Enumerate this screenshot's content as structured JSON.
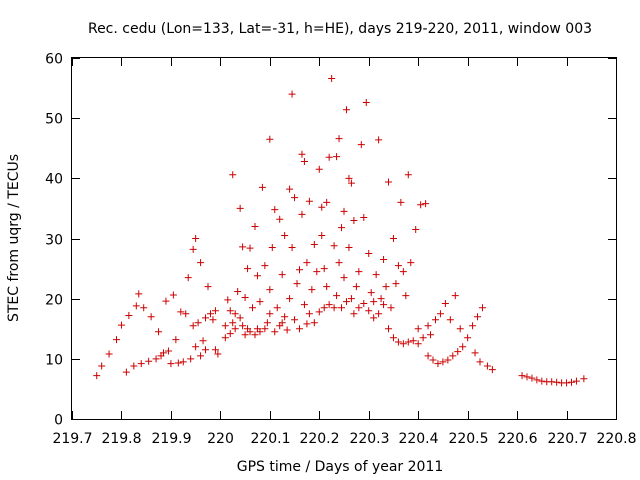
{
  "chart_data": {
    "type": "scatter",
    "title": "Rec. cedu (Lon=133, Lat=-31, h=HE), days 219-220, 2011, window 003",
    "xlabel": "GPS time / Days of year 2011",
    "ylabel": "STEC from uqrg / TECUs",
    "xlim": [
      219.7,
      220.8
    ],
    "ylim": [
      0,
      60
    ],
    "x_ticks": [
      219.7,
      219.8,
      219.9,
      220.0,
      220.1,
      220.2,
      220.3,
      220.4,
      220.5,
      220.6,
      220.7,
      220.8
    ],
    "x_tick_labels": [
      "219.7",
      "219.8",
      "219.9",
      "220",
      "220.1",
      "220.2",
      "220.3",
      "220.4",
      "220.5",
      "220.6",
      "220.7",
      "220.8"
    ],
    "y_ticks": [
      0,
      10,
      20,
      30,
      40,
      50,
      60
    ],
    "y_tick_labels": [
      "0",
      "10",
      "20",
      "30",
      "40",
      "50",
      "60"
    ],
    "grid": false,
    "marker": "plus",
    "color": "#cc0000",
    "series": [
      {
        "points": [
          [
            219.75,
            7.2
          ],
          [
            219.76,
            8.8
          ],
          [
            219.775,
            10.8
          ],
          [
            219.79,
            13.2
          ],
          [
            219.8,
            15.6
          ],
          [
            219.81,
            7.8
          ],
          [
            219.815,
            17.2
          ],
          [
            219.825,
            8.8
          ],
          [
            219.83,
            18.8
          ],
          [
            219.835,
            20.8
          ],
          [
            219.84,
            9.2
          ],
          [
            219.845,
            18.5
          ],
          [
            219.855,
            9.6
          ],
          [
            219.86,
            17.0
          ],
          [
            219.87,
            10.0
          ],
          [
            219.875,
            14.5
          ],
          [
            219.88,
            10.5
          ],
          [
            219.885,
            11.0
          ],
          [
            219.89,
            19.6
          ],
          [
            219.895,
            11.3
          ],
          [
            219.9,
            9.2
          ],
          [
            219.905,
            20.6
          ],
          [
            219.91,
            13.2
          ],
          [
            219.915,
            9.3
          ],
          [
            219.92,
            17.8
          ],
          [
            219.925,
            9.5
          ],
          [
            219.93,
            17.5
          ],
          [
            219.935,
            23.5
          ],
          [
            219.94,
            10.0
          ],
          [
            219.945,
            15.5
          ],
          [
            219.945,
            28.2
          ],
          [
            219.95,
            12.0
          ],
          [
            219.95,
            30.0
          ],
          [
            219.955,
            16.0
          ],
          [
            219.96,
            10.5
          ],
          [
            219.96,
            26.0
          ],
          [
            219.965,
            13.0
          ],
          [
            219.97,
            11.5
          ],
          [
            219.97,
            16.8
          ],
          [
            219.975,
            22.0
          ],
          [
            219.98,
            17.5
          ],
          [
            219.985,
            16.5
          ],
          [
            219.99,
            11.5
          ],
          [
            219.99,
            18.0
          ],
          [
            219.995,
            10.8
          ],
          [
            220.01,
            13.5
          ],
          [
            220.01,
            15.5
          ],
          [
            220.015,
            19.8
          ],
          [
            220.02,
            14.2
          ],
          [
            220.02,
            18.0
          ],
          [
            220.025,
            16.0
          ],
          [
            220.025,
            40.6
          ],
          [
            220.03,
            15.0
          ],
          [
            220.03,
            17.5
          ],
          [
            220.035,
            21.2
          ],
          [
            220.04,
            16.8
          ],
          [
            220.04,
            35.0
          ],
          [
            220.045,
            15.5
          ],
          [
            220.045,
            28.6
          ],
          [
            220.05,
            14.0
          ],
          [
            220.05,
            20.2
          ],
          [
            220.055,
            15.0
          ],
          [
            220.055,
            25.0
          ],
          [
            220.06,
            14.5
          ],
          [
            220.06,
            28.4
          ],
          [
            220.065,
            18.5
          ],
          [
            220.07,
            14.0
          ],
          [
            220.07,
            32.0
          ],
          [
            220.075,
            15.0
          ],
          [
            220.075,
            23.8
          ],
          [
            220.08,
            14.5
          ],
          [
            220.08,
            19.5
          ],
          [
            220.085,
            38.5
          ],
          [
            220.09,
            15.0
          ],
          [
            220.09,
            25.5
          ],
          [
            220.095,
            16.0
          ],
          [
            220.1,
            17.5
          ],
          [
            220.1,
            21.5
          ],
          [
            220.1,
            46.5
          ],
          [
            220.105,
            28.5
          ],
          [
            220.11,
            14.5
          ],
          [
            220.11,
            34.8
          ],
          [
            220.115,
            18.5
          ],
          [
            220.12,
            15.5
          ],
          [
            220.12,
            33.2
          ],
          [
            220.125,
            16.0
          ],
          [
            220.125,
            24.0
          ],
          [
            220.13,
            17.0
          ],
          [
            220.13,
            30.5
          ],
          [
            220.135,
            14.8
          ],
          [
            220.14,
            20.0
          ],
          [
            220.14,
            38.2
          ],
          [
            220.145,
            28.5
          ],
          [
            220.145,
            54.0
          ],
          [
            220.15,
            16.5
          ],
          [
            220.15,
            36.8
          ],
          [
            220.155,
            22.5
          ],
          [
            220.16,
            15.0
          ],
          [
            220.16,
            24.8
          ],
          [
            220.165,
            34.0
          ],
          [
            220.165,
            44.0
          ],
          [
            220.17,
            19.0
          ],
          [
            220.17,
            42.8
          ],
          [
            220.175,
            15.8
          ],
          [
            220.175,
            26.0
          ],
          [
            220.18,
            17.5
          ],
          [
            220.18,
            36.2
          ],
          [
            220.185,
            21.5
          ],
          [
            220.19,
            16.0
          ],
          [
            220.19,
            29.0
          ],
          [
            220.195,
            24.5
          ],
          [
            220.2,
            17.8
          ],
          [
            220.2,
            41.5
          ],
          [
            220.205,
            30.5
          ],
          [
            220.205,
            35.2
          ],
          [
            220.21,
            18.5
          ],
          [
            220.21,
            25.0
          ],
          [
            220.215,
            22.0
          ],
          [
            220.215,
            36.0
          ],
          [
            220.22,
            19.0
          ],
          [
            220.22,
            43.5
          ],
          [
            220.225,
            56.6
          ],
          [
            220.23,
            18.5
          ],
          [
            220.23,
            28.8
          ],
          [
            220.235,
            20.5
          ],
          [
            220.235,
            43.6
          ],
          [
            220.24,
            26.0
          ],
          [
            220.24,
            46.6
          ],
          [
            220.245,
            18.5
          ],
          [
            220.245,
            31.8
          ],
          [
            220.25,
            23.5
          ],
          [
            220.25,
            34.5
          ],
          [
            220.255,
            19.5
          ],
          [
            220.255,
            51.4
          ],
          [
            220.26,
            28.5
          ],
          [
            220.26,
            40.0
          ],
          [
            220.265,
            20.0
          ],
          [
            220.265,
            39.2
          ],
          [
            220.27,
            17.5
          ],
          [
            220.27,
            33.0
          ],
          [
            220.275,
            22.0
          ],
          [
            220.28,
            18.5
          ],
          [
            220.28,
            24.5
          ],
          [
            220.285,
            45.6
          ],
          [
            220.29,
            19.2
          ],
          [
            220.29,
            33.5
          ],
          [
            220.295,
            52.6
          ],
          [
            220.3,
            18.0
          ],
          [
            220.3,
            27.5
          ],
          [
            220.305,
            21.0
          ],
          [
            220.31,
            16.8
          ],
          [
            220.31,
            19.5
          ],
          [
            220.315,
            24.0
          ],
          [
            220.32,
            17.5
          ],
          [
            220.32,
            46.4
          ],
          [
            220.325,
            20.0
          ],
          [
            220.33,
            19.0
          ],
          [
            220.33,
            26.5
          ],
          [
            220.335,
            22.0
          ],
          [
            220.34,
            15.0
          ],
          [
            220.34,
            39.4
          ],
          [
            220.345,
            18.5
          ],
          [
            220.35,
            13.5
          ],
          [
            220.35,
            30.0
          ],
          [
            220.355,
            22.5
          ],
          [
            220.36,
            12.8
          ],
          [
            220.36,
            25.5
          ],
          [
            220.365,
            36.0
          ],
          [
            220.37,
            12.5
          ],
          [
            220.37,
            24.5
          ],
          [
            220.375,
            20.5
          ],
          [
            220.38,
            12.8
          ],
          [
            220.38,
            40.6
          ],
          [
            220.385,
            26.0
          ],
          [
            220.39,
            13.0
          ],
          [
            220.395,
            31.5
          ],
          [
            220.4,
            12.5
          ],
          [
            220.4,
            15.0
          ],
          [
            220.405,
            35.6
          ],
          [
            220.41,
            13.5
          ],
          [
            220.415,
            35.8
          ],
          [
            220.42,
            10.5
          ],
          [
            220.42,
            15.5
          ],
          [
            220.425,
            14.0
          ],
          [
            220.43,
            9.8
          ],
          [
            220.435,
            16.5
          ],
          [
            220.44,
            9.2
          ],
          [
            220.445,
            17.5
          ],
          [
            220.45,
            9.5
          ],
          [
            220.455,
            19.2
          ],
          [
            220.46,
            9.8
          ],
          [
            220.465,
            16.5
          ],
          [
            220.47,
            10.5
          ],
          [
            220.475,
            20.5
          ],
          [
            220.48,
            11.2
          ],
          [
            220.485,
            15.0
          ],
          [
            220.49,
            12.0
          ],
          [
            220.5,
            13.5
          ],
          [
            220.51,
            15.5
          ],
          [
            220.515,
            11.0
          ],
          [
            220.52,
            17.0
          ],
          [
            220.525,
            9.5
          ],
          [
            220.53,
            18.5
          ],
          [
            220.54,
            8.8
          ],
          [
            220.55,
            8.2
          ],
          [
            220.61,
            7.2
          ],
          [
            220.62,
            7.0
          ],
          [
            220.63,
            6.8
          ],
          [
            220.64,
            6.5
          ],
          [
            220.65,
            6.3
          ],
          [
            220.66,
            6.2
          ],
          [
            220.67,
            6.2
          ],
          [
            220.68,
            6.1
          ],
          [
            220.69,
            6.0
          ],
          [
            220.7,
            6.0
          ],
          [
            220.71,
            6.1
          ],
          [
            220.72,
            6.3
          ],
          [
            220.735,
            6.7
          ]
        ]
      }
    ]
  }
}
